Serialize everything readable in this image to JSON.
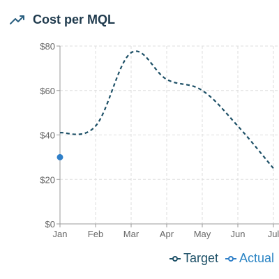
{
  "title": "Cost per MQL",
  "icon": "trending-up-icon",
  "colors": {
    "title": "#1f3a4d",
    "accent": "#2a5f7f",
    "target": "#1c4f66",
    "actual": "#2f7fc8",
    "grid": "#dddddd",
    "axis": "#999999",
    "tick_text": "#666666"
  },
  "chart_data": {
    "type": "line",
    "categories": [
      "Jan",
      "Feb",
      "Mar",
      "Apr",
      "May",
      "Jun",
      "Jul"
    ],
    "ylim": [
      0,
      80
    ],
    "yticks": [
      0,
      20,
      40,
      60,
      80
    ],
    "ytick_labels": [
      "$0",
      "$20",
      "$40",
      "$60",
      "$80"
    ],
    "grid": true,
    "legend_position": "bottom-right",
    "series": [
      {
        "name": "Target",
        "style": "dashed-smooth",
        "values": [
          41,
          44,
          77,
          65,
          60,
          44,
          25
        ]
      },
      {
        "name": "Actual",
        "style": "points",
        "values": [
          30,
          null,
          null,
          null,
          null,
          null,
          null
        ]
      }
    ]
  }
}
